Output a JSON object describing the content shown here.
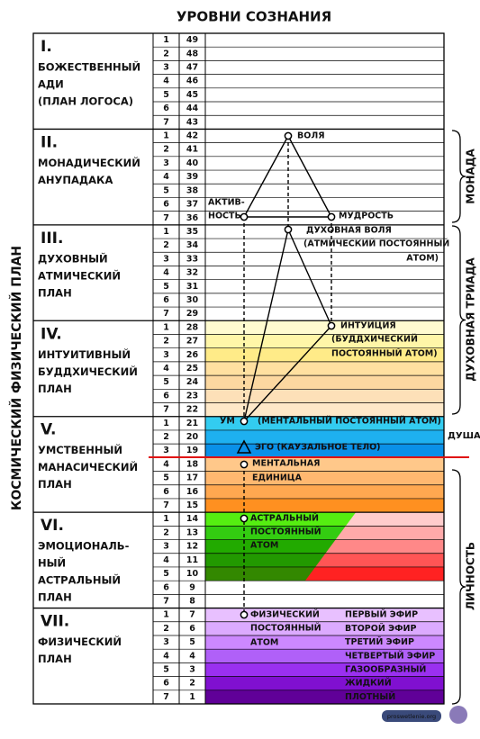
{
  "title": "УРОВНИ СОЗНАНИЯ",
  "left_label": "КОСМИЧЕСКИЙ ФИЗИЧЕСКИЙ ПЛАН",
  "planes": [
    {
      "numeral": "I.",
      "name_lines": [
        "БОЖЕСТВЕННЫЙ",
        "АДИ",
        "(ПЛАН ЛОГОСА)"
      ],
      "rows": [
        [
          1,
          49
        ],
        [
          2,
          48
        ],
        [
          3,
          47
        ],
        [
          4,
          46
        ],
        [
          5,
          45
        ],
        [
          6,
          44
        ],
        [
          7,
          43
        ]
      ]
    },
    {
      "numeral": "II.",
      "name_lines": [
        "МОНАДИЧЕСКИЙ",
        "АНУПАДАКА"
      ],
      "rows": [
        [
          1,
          42
        ],
        [
          2,
          41
        ],
        [
          3,
          40
        ],
        [
          4,
          39
        ],
        [
          5,
          38
        ],
        [
          6,
          37
        ],
        [
          7,
          36
        ]
      ]
    },
    {
      "numeral": "III.",
      "name_lines": [
        "ДУХОВНЫЙ",
        "АТМИЧЕСКИЙ",
        "ПЛАН"
      ],
      "rows": [
        [
          1,
          35
        ],
        [
          2,
          34
        ],
        [
          3,
          33
        ],
        [
          4,
          32
        ],
        [
          5,
          31
        ],
        [
          6,
          30
        ],
        [
          7,
          29
        ]
      ]
    },
    {
      "numeral": "IV.",
      "name_lines": [
        "ИНТУИТИВНЫЙ",
        "БУДДХИЧЕСКИЙ",
        "ПЛАН"
      ],
      "rows": [
        [
          1,
          28
        ],
        [
          2,
          27
        ],
        [
          3,
          26
        ],
        [
          4,
          25
        ],
        [
          5,
          24
        ],
        [
          6,
          23
        ],
        [
          7,
          22
        ]
      ]
    },
    {
      "numeral": "V.",
      "name_lines": [
        "УМСТВЕННЫЙ",
        "МАНАСИЧЕСКИЙ",
        "ПЛАН"
      ],
      "rows": [
        [
          1,
          21
        ],
        [
          2,
          20
        ],
        [
          3,
          19
        ],
        [
          4,
          18
        ],
        [
          5,
          17
        ],
        [
          6,
          16
        ],
        [
          7,
          15
        ]
      ]
    },
    {
      "numeral": "VI.",
      "name_lines": [
        "ЭМОЦИОНАЛЬ-",
        "НЫЙ",
        "АСТРАЛЬНЫЙ",
        "ПЛАН"
      ],
      "rows": [
        [
          1,
          14
        ],
        [
          2,
          13
        ],
        [
          3,
          12
        ],
        [
          4,
          11
        ],
        [
          5,
          10
        ],
        [
          6,
          9
        ],
        [
          7,
          8
        ]
      ]
    },
    {
      "numeral": "VII.",
      "name_lines": [
        "ФИЗИЧЕСКИЙ",
        "ПЛАН"
      ],
      "rows": [
        [
          1,
          7
        ],
        [
          2,
          6
        ],
        [
          3,
          5
        ],
        [
          4,
          4
        ],
        [
          5,
          3
        ],
        [
          6,
          2
        ],
        [
          7,
          1
        ]
      ]
    }
  ],
  "groups": [
    "МОНАДА",
    "ДУХОВНАЯ ТРИАДА",
    "ДУША",
    "ЛИЧНОСТЬ"
  ],
  "nodes": [
    {
      "lines": [
        "ВОЛЯ"
      ]
    },
    {
      "lines": [
        "АКТИВ-",
        "НОСТЬ"
      ]
    },
    {
      "lines": [
        "МУДРОСТЬ"
      ]
    },
    {
      "lines": [
        "ДУХОВНАЯ ВОЛЯ"
      ]
    },
    {
      "lines": [
        "(АТМИЧЕСКИЙ ПОСТОЯННЫЙ",
        "АТОМ)"
      ]
    },
    {
      "lines": [
        "ИНТУИЦИЯ"
      ]
    },
    {
      "lines": [
        "(БУДДХИЧЕСКИЙ",
        "ПОСТОЯННЫЙ АТОМ)"
      ]
    },
    {
      "lines": [
        "УМ"
      ]
    },
    {
      "lines": [
        "(МЕНТАЛЬНЫЙ ПОСТОЯННЫЙ АТОМ)"
      ]
    },
    {
      "lines": [
        "ЭГО (КАУЗАЛЬНОЕ ТЕЛО)"
      ]
    },
    {
      "lines": [
        "МЕНТАЛЬНАЯ",
        "ЕДИНИЦА"
      ]
    },
    {
      "lines": [
        "АСТРАЛЬНЫЙ",
        "ПОСТОЯННЫЙ",
        "АТОМ"
      ]
    },
    {
      "lines": [
        "ФИЗИЧЕСКИЙ",
        "ПОСТОЯННЫЙ",
        "АТОМ"
      ]
    }
  ],
  "ethers": [
    "ПЕРВЫЙ ЭФИР",
    "ВТОРОЙ ЭФИР",
    "ТРЕТИЙ ЭФИР",
    "ЧЕТВЕРТЫЙ  ЭФИР",
    "ГАЗООБРАЗНЫЙ",
    "ЖИДКИЙ",
    "ПЛОТНЫЙ"
  ],
  "watermark": "proswetlenie.org"
}
